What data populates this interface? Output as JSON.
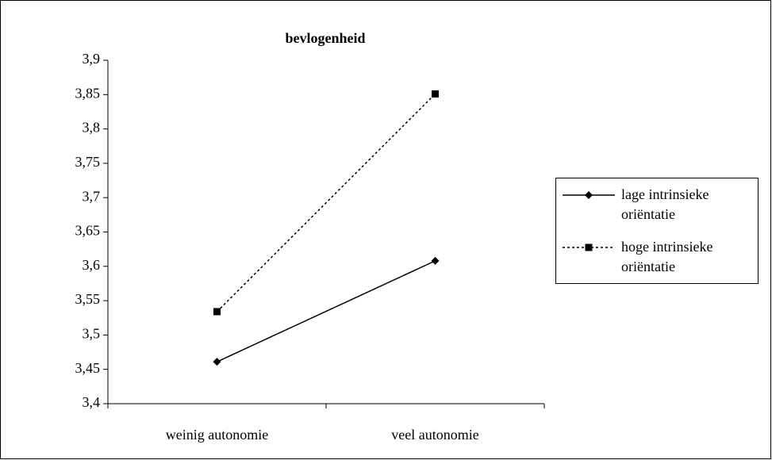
{
  "chart_data": {
    "type": "line",
    "title": "bevlogenheid",
    "categories": [
      "weinig autonomie",
      "veel autonomie"
    ],
    "series": [
      {
        "name": "lage intrinsieke oriëntatie",
        "color": "#000000",
        "line_style": "solid",
        "marker": "diamond",
        "values": [
          3.461,
          3.608
        ]
      },
      {
        "name": "hoge intrinsieke oriëntatie",
        "color": "#000000",
        "line_style": "dotted",
        "marker": "square",
        "values": [
          3.534,
          3.851
        ]
      }
    ],
    "ylim": [
      3.4,
      3.9
    ],
    "yticks": [
      {
        "value": 3.4,
        "label": "3,4"
      },
      {
        "value": 3.45,
        "label": "3,45"
      },
      {
        "value": 3.5,
        "label": "3,5"
      },
      {
        "value": 3.55,
        "label": "3,55"
      },
      {
        "value": 3.6,
        "label": "3,6"
      },
      {
        "value": 3.65,
        "label": "3,65"
      },
      {
        "value": 3.7,
        "label": "3,7"
      },
      {
        "value": 3.75,
        "label": "3,75"
      },
      {
        "value": 3.8,
        "label": "3,8"
      },
      {
        "value": 3.85,
        "label": "3,85"
      },
      {
        "value": 3.9,
        "label": "3,9"
      }
    ],
    "grid": false,
    "legend": "right"
  }
}
